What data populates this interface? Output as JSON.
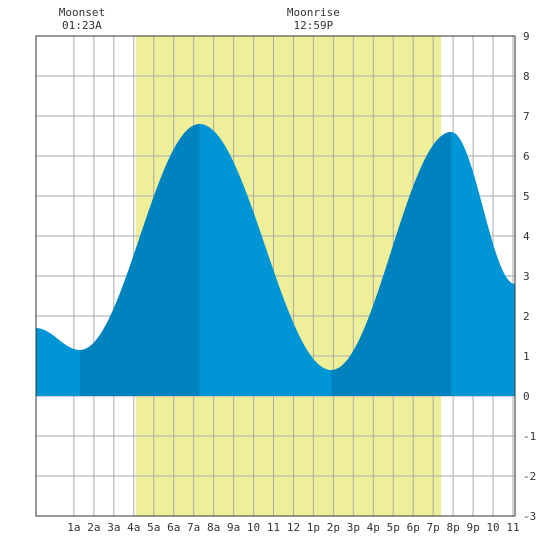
{
  "chart_data": {
    "type": "area",
    "x_unit": "hour of day",
    "xlim": [
      -0.9,
      23.1
    ],
    "ylim": [
      -3,
      9
    ],
    "grid": true,
    "y_ticks": [
      "-3",
      "-2",
      "-1",
      "0",
      "1",
      "2",
      "3",
      "4",
      "5",
      "6",
      "7",
      "8",
      "9"
    ],
    "x_ticks": [
      {
        "hour": 1,
        "label": "1a"
      },
      {
        "hour": 2,
        "label": "2a"
      },
      {
        "hour": 3,
        "label": "3a"
      },
      {
        "hour": 4,
        "label": "4a"
      },
      {
        "hour": 5,
        "label": "5a"
      },
      {
        "hour": 6,
        "label": "6a"
      },
      {
        "hour": 7,
        "label": "7a"
      },
      {
        "hour": 8,
        "label": "8a"
      },
      {
        "hour": 9,
        "label": "9a"
      },
      {
        "hour": 10,
        "label": "10"
      },
      {
        "hour": 11,
        "label": "11"
      },
      {
        "hour": 12,
        "label": "12"
      },
      {
        "hour": 13,
        "label": "1p"
      },
      {
        "hour": 14,
        "label": "2p"
      },
      {
        "hour": 15,
        "label": "3p"
      },
      {
        "hour": 16,
        "label": "4p"
      },
      {
        "hour": 17,
        "label": "5p"
      },
      {
        "hour": 18,
        "label": "6p"
      },
      {
        "hour": 19,
        "label": "7p"
      },
      {
        "hour": 20,
        "label": "8p"
      },
      {
        "hour": 21,
        "label": "9p"
      },
      {
        "hour": 22,
        "label": "10"
      },
      {
        "hour": 23,
        "label": "11"
      }
    ],
    "tide_extremes": [
      {
        "hour": 1.3,
        "height": 1.15
      },
      {
        "hour": 7.3,
        "height": 6.8
      },
      {
        "hour": 13.9,
        "height": 0.65
      },
      {
        "hour": 19.9,
        "height": 6.6
      }
    ],
    "tide_start": {
      "hour": -0.9,
      "height": 1.7
    },
    "tide_end": {
      "hour": 23.1,
      "height": 2.8
    },
    "daylight": {
      "start_hour": 4.1,
      "end_hour": 19.4
    },
    "rising_bands": [
      [
        1.3,
        7.3
      ],
      [
        13.9,
        19.9
      ]
    ],
    "moon_events": [
      {
        "hour": 1.4,
        "name": "Moonset",
        "time": "01:23A"
      },
      {
        "hour": 13.0,
        "name": "Moonrise",
        "time": "12:59P"
      }
    ],
    "colors": {
      "daylight": "#f0ef99",
      "tide_falling": "#0096d6",
      "tide_rising": "#0082bf",
      "grid": "#aaaaaa",
      "axis": "#333333"
    }
  }
}
